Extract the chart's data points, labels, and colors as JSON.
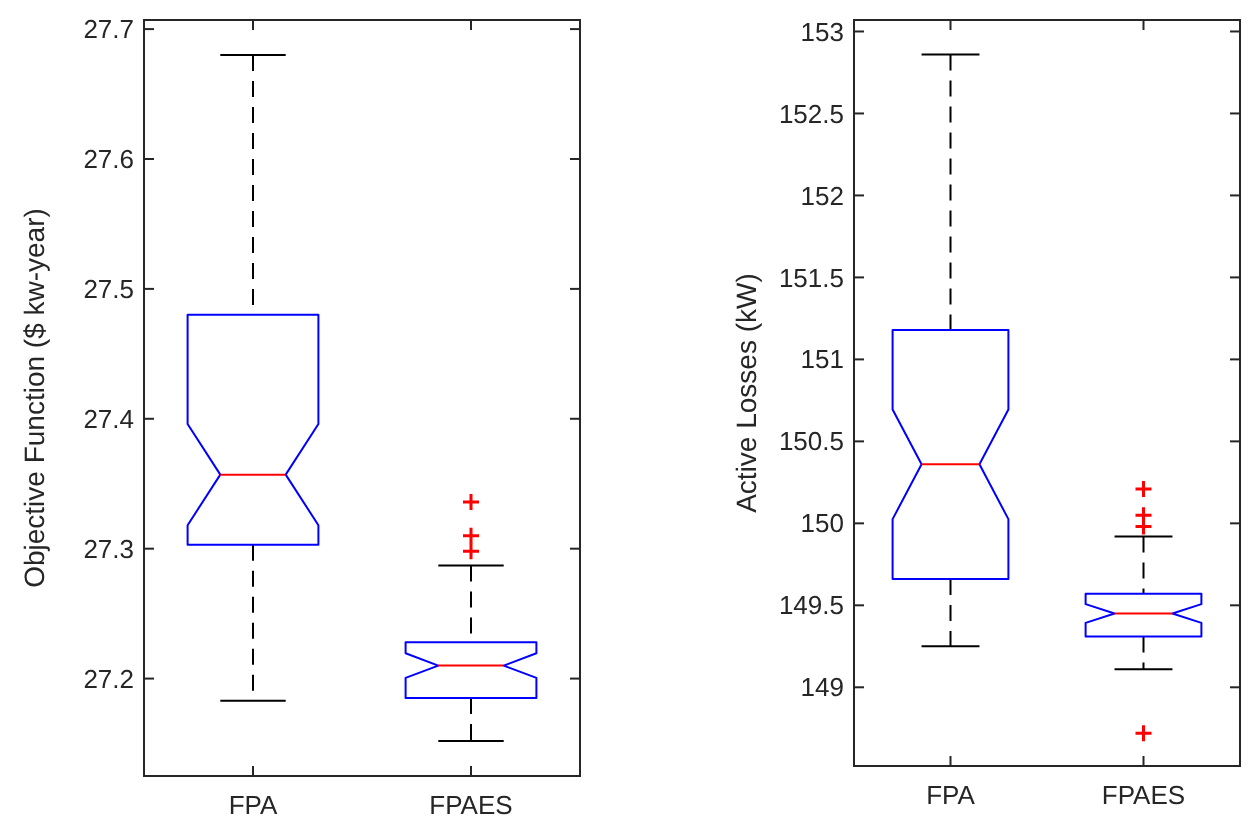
{
  "chart_data": [
    {
      "type": "box",
      "ylabel": "Objective Function ($ kw-year)",
      "categories": [
        "FPA",
        "FPAES"
      ],
      "ylim": [
        27.125,
        27.707
      ],
      "yticks": [
        27.2,
        27.3,
        27.4,
        27.5,
        27.6,
        27.7
      ],
      "grid": false,
      "marker": "cross",
      "series": [
        {
          "color": "#0000ff",
          "boxes": [
            {
              "low": 27.183,
              "q1": 27.303,
              "median": 27.357,
              "q3": 27.48,
              "high": 27.68
            },
            {
              "low": 27.152,
              "q1": 27.185,
              "median": 27.21,
              "q3": 27.228,
              "high": 27.287,
              "outliers": [
                27.298,
                27.31,
                27.336
              ]
            }
          ]
        }
      ]
    },
    {
      "type": "box",
      "ylabel": "Active Losses (kW)",
      "categories": [
        "FPA",
        "FPAES"
      ],
      "ylim": [
        148.52,
        153.07
      ],
      "yticks": [
        149,
        149.5,
        150,
        150.5,
        151,
        151.5,
        152,
        152.5,
        153
      ],
      "grid": false,
      "marker": "cross",
      "series": [
        {
          "color": "#0000ff",
          "boxes": [
            {
              "low": 149.25,
              "q1": 149.66,
              "median": 150.36,
              "q3": 151.18,
              "high": 152.86
            },
            {
              "low": 149.11,
              "q1": 149.31,
              "median": 149.45,
              "q3": 149.57,
              "high": 149.92,
              "outliers": [
                148.72,
                149.98,
                150.05,
                150.21
              ]
            }
          ]
        }
      ]
    }
  ]
}
